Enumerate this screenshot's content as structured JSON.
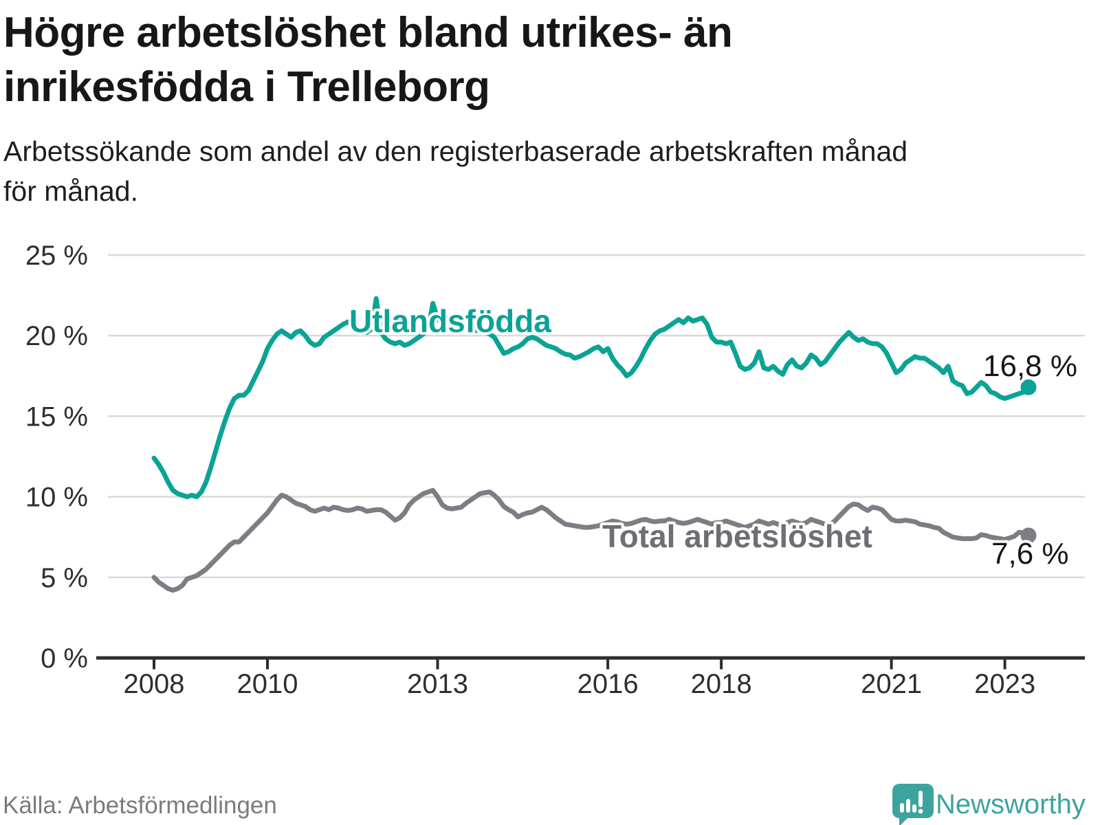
{
  "header": {
    "title_lines": [
      "Högre arbetslöshet bland utrikes- än",
      "inrikesfödda i Trelleborg"
    ],
    "subtitle_lines": [
      "Arbetssökande som andel av den registerbaserade arbetskraften månad",
      "för månad."
    ]
  },
  "chart_data": {
    "type": "line",
    "title": "Högre arbetslöshet bland utrikes- än inrikesfödda i Trelleborg",
    "subtitle": "Arbetssökande som andel av den registerbaserade arbetskraften månad för månad.",
    "unit": "%",
    "grid": "horizontal",
    "ylim": [
      0,
      25
    ],
    "y_ticks": [
      {
        "label": "25 %",
        "value": 25
      },
      {
        "label": "20 %",
        "value": 20
      },
      {
        "label": "15 %",
        "value": 15
      },
      {
        "label": "10 %",
        "value": 10
      },
      {
        "label": "5 %",
        "value": 5
      },
      {
        "label": "0 %",
        "value": 0
      }
    ],
    "x_start_year": 2008,
    "x_months_total": 186,
    "x_tick_years": [
      2008,
      2010,
      2013,
      2016,
      2018,
      2021,
      2023
    ],
    "series": [
      {
        "name": "Utlandsfödda",
        "color": "#0aa396",
        "end_label": "16,8 %",
        "end_value": 16.8,
        "values": [
          12.4,
          12.0,
          11.5,
          10.9,
          10.4,
          10.2,
          10.1,
          10.0,
          10.1,
          10.0,
          10.3,
          10.9,
          11.8,
          12.8,
          13.8,
          14.7,
          15.5,
          16.1,
          16.3,
          16.3,
          16.6,
          17.2,
          17.8,
          18.4,
          19.2,
          19.7,
          20.1,
          20.3,
          20.1,
          19.9,
          20.2,
          20.3,
          20.0,
          19.6,
          19.4,
          19.5,
          19.9,
          20.1,
          20.3,
          20.5,
          20.7,
          20.85,
          20.7,
          20.5,
          20.3,
          20.2,
          20.4,
          22.3,
          20.2,
          19.8,
          19.6,
          19.5,
          19.6,
          19.4,
          19.5,
          19.7,
          19.9,
          20.1,
          20.4,
          22.0,
          21.0,
          20.8,
          20.9,
          21.0,
          20.8,
          20.6,
          20.5,
          20.4,
          20.3,
          20.4,
          20.2,
          20.1,
          19.9,
          19.4,
          18.9,
          19.0,
          19.2,
          19.3,
          19.5,
          19.8,
          19.9,
          19.8,
          19.6,
          19.4,
          19.3,
          19.2,
          19.0,
          18.85,
          18.8,
          18.6,
          18.7,
          18.85,
          19.0,
          19.2,
          19.3,
          19.0,
          19.2,
          18.6,
          18.2,
          17.9,
          17.5,
          17.7,
          18.1,
          18.6,
          19.2,
          19.7,
          20.1,
          20.3,
          20.4,
          20.6,
          20.8,
          21.0,
          20.8,
          21.1,
          20.9,
          21.0,
          21.1,
          20.7,
          19.9,
          19.6,
          19.6,
          19.5,
          19.6,
          18.9,
          18.1,
          17.9,
          18.0,
          18.3,
          19.0,
          18.0,
          17.9,
          18.1,
          17.8,
          17.6,
          18.2,
          18.5,
          18.1,
          18.0,
          18.3,
          18.8,
          18.6,
          18.2,
          18.4,
          18.8,
          19.2,
          19.6,
          19.9,
          20.2,
          19.9,
          19.7,
          19.8,
          19.6,
          19.5,
          19.5,
          19.3,
          18.9,
          18.3,
          17.7,
          17.9,
          18.3,
          18.5,
          18.7,
          18.6,
          18.6,
          18.4,
          18.2,
          18.0,
          17.7,
          18.1,
          17.2,
          17.0,
          16.9,
          16.4,
          16.5,
          16.8,
          17.1,
          16.9,
          16.5,
          16.4,
          16.2,
          16.1,
          16.2,
          16.3,
          16.4,
          16.5,
          16.8
        ]
      },
      {
        "name": "Total arbetslöshet",
        "color": "#7e7d84",
        "end_label": "7,6 %",
        "end_value": 7.6,
        "values": [
          5.0,
          4.7,
          4.5,
          4.3,
          4.2,
          4.3,
          4.5,
          4.9,
          5.0,
          5.1,
          5.3,
          5.5,
          5.8,
          6.1,
          6.4,
          6.7,
          7.0,
          7.2,
          7.2,
          7.5,
          7.8,
          8.1,
          8.4,
          8.7,
          9.0,
          9.4,
          9.8,
          10.1,
          10.0,
          9.8,
          9.6,
          9.5,
          9.4,
          9.2,
          9.1,
          9.2,
          9.3,
          9.2,
          9.35,
          9.3,
          9.2,
          9.15,
          9.2,
          9.3,
          9.25,
          9.1,
          9.15,
          9.2,
          9.2,
          9.05,
          8.8,
          8.55,
          8.7,
          9.0,
          9.5,
          9.8,
          10.0,
          10.2,
          10.3,
          10.4,
          10.0,
          9.5,
          9.3,
          9.25,
          9.3,
          9.35,
          9.6,
          9.8,
          10.0,
          10.2,
          10.25,
          10.3,
          10.1,
          9.8,
          9.4,
          9.2,
          9.05,
          8.75,
          8.9,
          9.0,
          9.05,
          9.2,
          9.35,
          9.2,
          8.95,
          8.7,
          8.5,
          8.3,
          8.25,
          8.2,
          8.15,
          8.1,
          8.1,
          8.15,
          8.2,
          8.3,
          8.4,
          8.5,
          8.45,
          8.35,
          8.3,
          8.35,
          8.45,
          8.55,
          8.6,
          8.5,
          8.45,
          8.5,
          8.5,
          8.6,
          8.5,
          8.4,
          8.35,
          8.4,
          8.5,
          8.6,
          8.5,
          8.4,
          8.3,
          8.4,
          8.4,
          8.5,
          8.4,
          8.3,
          8.2,
          8.1,
          8.2,
          8.3,
          8.5,
          8.4,
          8.3,
          8.4,
          8.3,
          8.2,
          8.4,
          8.5,
          8.4,
          8.3,
          8.4,
          8.6,
          8.5,
          8.4,
          8.3,
          8.25,
          8.5,
          8.8,
          9.1,
          9.4,
          9.55,
          9.5,
          9.3,
          9.15,
          9.35,
          9.3,
          9.2,
          8.9,
          8.6,
          8.5,
          8.5,
          8.55,
          8.5,
          8.45,
          8.3,
          8.25,
          8.2,
          8.1,
          8.05,
          7.8,
          7.65,
          7.5,
          7.45,
          7.4,
          7.4,
          7.4,
          7.45,
          7.65,
          7.6,
          7.5,
          7.45,
          7.4,
          7.35,
          7.45,
          7.55,
          7.8,
          7.75,
          7.6
        ]
      }
    ],
    "colors": {
      "grid": "#d9d9d9",
      "axis": "#2d2d2d",
      "tick_text": "#2e2e2e",
      "value_label_text": "#161616"
    }
  },
  "footer": {
    "source": "Källa: Arbetsförmedlingen",
    "brand": "Newsworthy",
    "brand_color": "#3ca49e"
  }
}
